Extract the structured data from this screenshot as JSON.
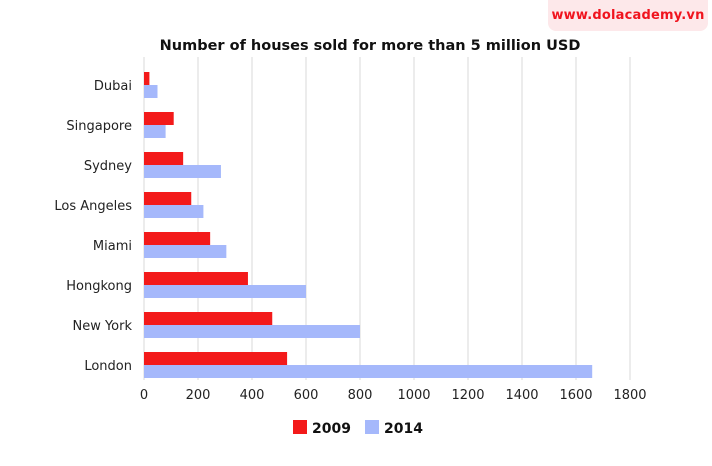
{
  "brand": {
    "text": "www.dolacademy.vn",
    "color": "#f0141e"
  },
  "chart_data": {
    "type": "bar",
    "orientation": "horizontal",
    "title": "Number of houses sold for more than 5 million USD",
    "xlabel": "",
    "ylabel": "",
    "categories": [
      "Dubai",
      "Singapore",
      "Sydney",
      "Los Angeles",
      "Miami",
      "Hongkong",
      "New York",
      "London"
    ],
    "series": [
      {
        "name": "2009",
        "color": "#f31a1a",
        "values": [
          20,
          110,
          145,
          175,
          245,
          385,
          475,
          530
        ]
      },
      {
        "name": "2014",
        "color": "#a5b8fb",
        "values": [
          50,
          80,
          285,
          220,
          305,
          600,
          800,
          1660
        ]
      }
    ],
    "xlim": [
      0,
      1800
    ],
    "xticks": [
      "0",
      "200",
      "400",
      "600",
      "800",
      "1000",
      "1200",
      "1400",
      "1600",
      "1800"
    ],
    "grid": true,
    "legend_position": "bottom"
  }
}
